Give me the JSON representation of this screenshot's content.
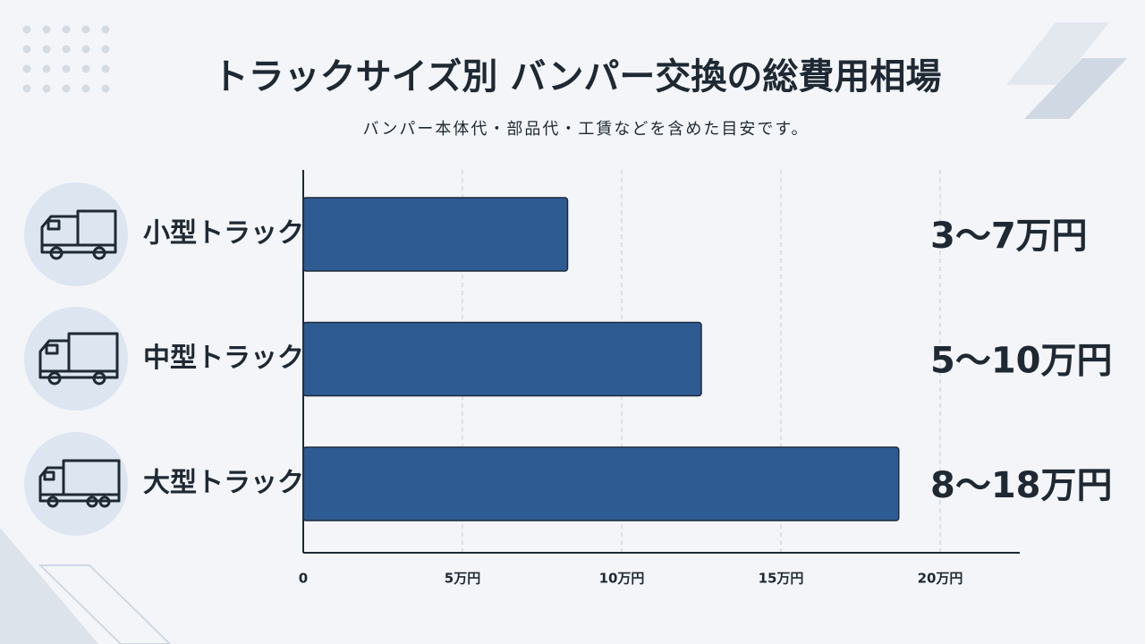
{
  "chart_data": {
    "type": "bar",
    "orientation": "horizontal",
    "title": "トラックサイズ別 バンパー交換の総費用相場",
    "subtitle": "バンパー本体代・部品代・工賃などを含めた目安です。",
    "categories": [
      "小型トラック",
      "中型トラック",
      "大型トラック"
    ],
    "values": [
      8.3,
      12.5,
      18.7
    ],
    "annotations": [
      "3～7万円",
      "5～10万円",
      "8～18万円"
    ],
    "color": "#2f5b93",
    "xlim": [
      0,
      22.5
    ],
    "xticks": [
      0,
      {
        "value": 5,
        "label": "5万円"
      },
      {
        "value": 10,
        "label": "10万円"
      },
      {
        "value": 15,
        "label": "15万円"
      },
      {
        "value": 20,
        "label": "20万円"
      }
    ],
    "grid": true
  }
}
